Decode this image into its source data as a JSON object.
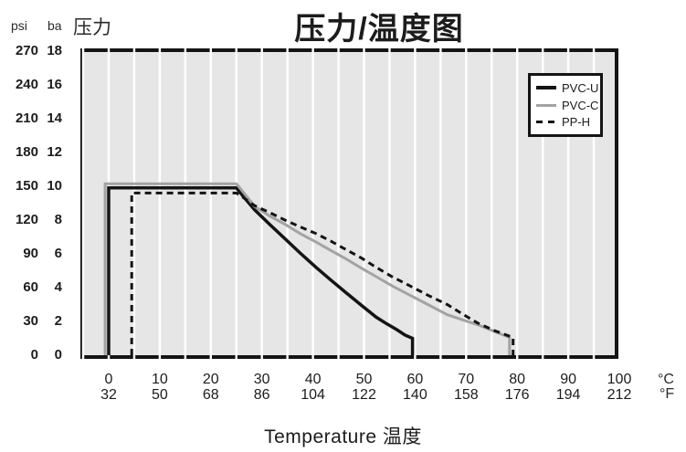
{
  "title": "压力/温度图",
  "pressure_header": {
    "psi": "psi",
    "bar": "ba",
    "label": "压力"
  },
  "temperature_footer": {
    "label": "Temperature 温度",
    "unit_c": "°C",
    "unit_f": "°F"
  },
  "legend": {
    "items": [
      {
        "label": "PVC-U"
      },
      {
        "label": "PVC-C"
      },
      {
        "label": "PP-H"
      }
    ]
  },
  "colors": {
    "plot_background": "#e7e6e6",
    "gridline": "#ffffff",
    "border": "#141414",
    "pvc_u": "#141414",
    "pvc_c": "#a3a3a3",
    "pp_h": "#141414",
    "text": "#1c1c1c"
  },
  "chart_data": {
    "type": "line",
    "title": "压力/温度图",
    "xlabel": "Temperature 温度",
    "ylabel": "压力",
    "xlim": [
      -5.5,
      100
    ],
    "ylim": [
      0,
      18.2
    ],
    "grid": "vertical-white-lines-every-5C",
    "legend_position": "top-right",
    "x_ticks_c": [
      0,
      10,
      20,
      30,
      40,
      50,
      60,
      70,
      80,
      90,
      100
    ],
    "x_ticks_f": [
      32,
      50,
      68,
      86,
      104,
      122,
      140,
      158,
      176,
      194,
      212
    ],
    "y_ticks_psi": [
      270,
      240,
      210,
      180,
      150,
      120,
      90,
      60,
      30,
      0
    ],
    "y_ticks_bar": [
      18,
      16,
      14,
      12,
      10,
      8,
      6,
      4,
      2,
      0
    ],
    "series": [
      {
        "name": "PVC-U",
        "color": "#141414",
        "style": "solid",
        "width": 3.5,
        "points": [
          [
            0,
            0
          ],
          [
            0,
            9.9
          ],
          [
            25,
            9.9
          ],
          [
            26.5,
            9.35
          ],
          [
            28.6,
            8.6
          ],
          [
            31.5,
            7.75
          ],
          [
            34.5,
            6.9
          ],
          [
            37.5,
            6.05
          ],
          [
            40.6,
            5.2
          ],
          [
            43.5,
            4.45
          ],
          [
            46.5,
            3.7
          ],
          [
            49.5,
            2.95
          ],
          [
            52.4,
            2.25
          ],
          [
            54.5,
            1.85
          ],
          [
            56.5,
            1.5
          ],
          [
            58,
            1.2
          ],
          [
            59.5,
            1.0
          ],
          [
            59.5,
            0
          ]
        ]
      },
      {
        "name": "PVC-C",
        "color": "#a3a3a3",
        "style": "solid",
        "width": 3,
        "points": [
          [
            -0.7,
            0
          ],
          [
            -0.7,
            10.15
          ],
          [
            25,
            10.15
          ],
          [
            26.5,
            9.6
          ],
          [
            28.6,
            8.8
          ],
          [
            31.5,
            8.25
          ],
          [
            34.5,
            7.75
          ],
          [
            37.5,
            7.2
          ],
          [
            40.6,
            6.7
          ],
          [
            43.5,
            6.2
          ],
          [
            46.5,
            5.7
          ],
          [
            49.5,
            5.15
          ],
          [
            52.4,
            4.65
          ],
          [
            55.5,
            4.1
          ],
          [
            59,
            3.55
          ],
          [
            62.5,
            3.0
          ],
          [
            66.3,
            2.4
          ],
          [
            69.2,
            2.1
          ],
          [
            72.3,
            1.8
          ],
          [
            75.6,
            1.4
          ],
          [
            78.5,
            1.05
          ],
          [
            78.5,
            0
          ]
        ]
      },
      {
        "name": "PP-H",
        "color": "#141414",
        "style": "dashed",
        "width": 3,
        "points": [
          [
            4.5,
            0
          ],
          [
            4.5,
            9.6
          ],
          [
            25,
            9.6
          ],
          [
            26.5,
            9.3
          ],
          [
            28.6,
            8.85
          ],
          [
            31.5,
            8.45
          ],
          [
            34.5,
            8.0
          ],
          [
            37.5,
            7.6
          ],
          [
            40.6,
            7.2
          ],
          [
            43.5,
            6.75
          ],
          [
            46.5,
            6.25
          ],
          [
            49.5,
            5.75
          ],
          [
            52.4,
            5.2
          ],
          [
            55.5,
            4.65
          ],
          [
            59,
            4.1
          ],
          [
            62.5,
            3.55
          ],
          [
            66.3,
            3.0
          ],
          [
            69.5,
            2.4
          ],
          [
            72.3,
            1.9
          ],
          [
            75.6,
            1.45
          ],
          [
            79.2,
            1.05
          ],
          [
            79.2,
            0
          ]
        ]
      }
    ]
  }
}
